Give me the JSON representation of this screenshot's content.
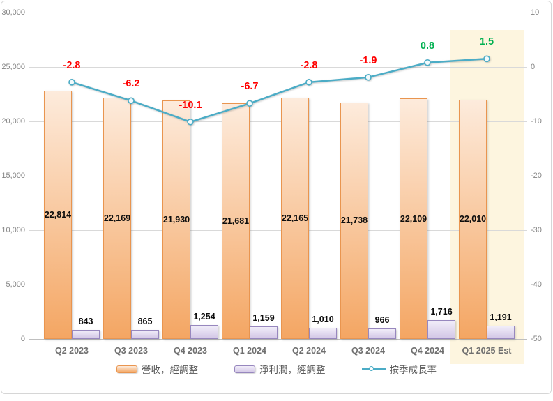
{
  "colors": {
    "revenue_fill_top": "#FDEBDC",
    "revenue_fill_bottom": "#F4A663",
    "revenue_border": "#E9954F",
    "profit_fill_top": "#F1EDF9",
    "profit_fill_bottom": "#D3C7E6",
    "profit_border": "#9787BE",
    "line": "#4BACC6",
    "marker_fill": "#F3FAFC",
    "negative_label": "#FF0000",
    "positive_label": "#00B050",
    "bar_label": "#0D0D0D",
    "axis_text": "#848484",
    "category_text": "#6F6F6F",
    "legend_text": "#595959",
    "gridline": "#D9D9D9",
    "axis_line": "#BFBFBF",
    "highlight_bg": "#FDF5DF"
  },
  "chart_data": {
    "type": "combo",
    "categories": [
      "Q2 2023",
      "Q3 2023",
      "Q4 2023",
      "Q1 2024",
      "Q2 2024",
      "Q3 2024",
      "Q4 2024",
      "Q1 2025 Est"
    ],
    "series": [
      {
        "name": "營收，經調整",
        "type": "bar",
        "axis": "left",
        "values": [
          22814,
          22169,
          21930,
          21681,
          22165,
          21738,
          22109,
          22010
        ],
        "labels": [
          "22,814",
          "22,169",
          "21,930",
          "21,681",
          "22,165",
          "21,738",
          "22,109",
          "22,010"
        ],
        "label_position": "center"
      },
      {
        "name": "淨利潤，經調整",
        "type": "bar",
        "axis": "left",
        "values": [
          843,
          865,
          1254,
          1159,
          1010,
          966,
          1716,
          1191
        ],
        "labels": [
          "843",
          "865",
          "1,254",
          "1,159",
          "1,010",
          "966",
          "1,716",
          "1,191"
        ],
        "label_position": "outside-end"
      },
      {
        "name": "按季成長率",
        "type": "line",
        "axis": "right",
        "values": [
          -2.8,
          -6.2,
          -10.1,
          -6.7,
          -2.8,
          -1.9,
          0.8,
          1.5
        ],
        "labels": [
          "-2.8",
          "-6.2",
          "-10.1",
          "-6.7",
          "-2.8",
          "-1.9",
          "0.8",
          "1.5"
        ],
        "label_position": "above"
      }
    ],
    "left_axis": {
      "min": 0,
      "max": 30000,
      "step": 5000,
      "ticks": [
        "30,000",
        "25,000",
        "20,000",
        "15,000",
        "10,000",
        "5,000",
        "0"
      ]
    },
    "right_axis": {
      "min": -50,
      "max": 10,
      "step": 10,
      "ticks": [
        "10",
        "0",
        "-10",
        "-20",
        "-30",
        "-40",
        "-50"
      ]
    },
    "highlight": {
      "category": "Q1 2025 Est"
    },
    "grid": true,
    "legend_position": "bottom",
    "title": ""
  }
}
